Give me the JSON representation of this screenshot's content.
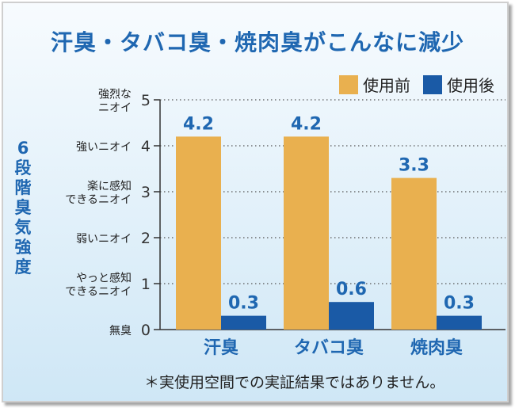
{
  "chart_data": {
    "type": "bar",
    "title": "汗臭・タバコ臭・焼肉臭がこんなに減少",
    "ylabel": "6段階臭気強度",
    "categories": [
      "汗臭",
      "タバコ臭",
      "焼肉臭"
    ],
    "series": [
      {
        "name": "使用前",
        "values": [
          4.2,
          4.2,
          3.3
        ],
        "color": "#e9b04f"
      },
      {
        "name": "使用後",
        "values": [
          0.3,
          0.6,
          0.3
        ],
        "color": "#1a5aa6"
      }
    ],
    "ylim": [
      0,
      5
    ],
    "yticks": [
      0,
      1,
      2,
      3,
      4,
      5
    ],
    "ytick_descriptions": [
      [
        "無臭"
      ],
      [
        "やっと感知",
        "できるニオイ"
      ],
      [
        "弱いニオイ"
      ],
      [
        "楽に感知",
        "できるニオイ"
      ],
      [
        "強いニオイ"
      ],
      [
        "強烈な",
        "ニオイ"
      ]
    ],
    "grid": true,
    "legend_position": "top-right",
    "value_label_color": "#1f67b1"
  },
  "footnote": "＊実使用空間での実証結果ではありません。"
}
